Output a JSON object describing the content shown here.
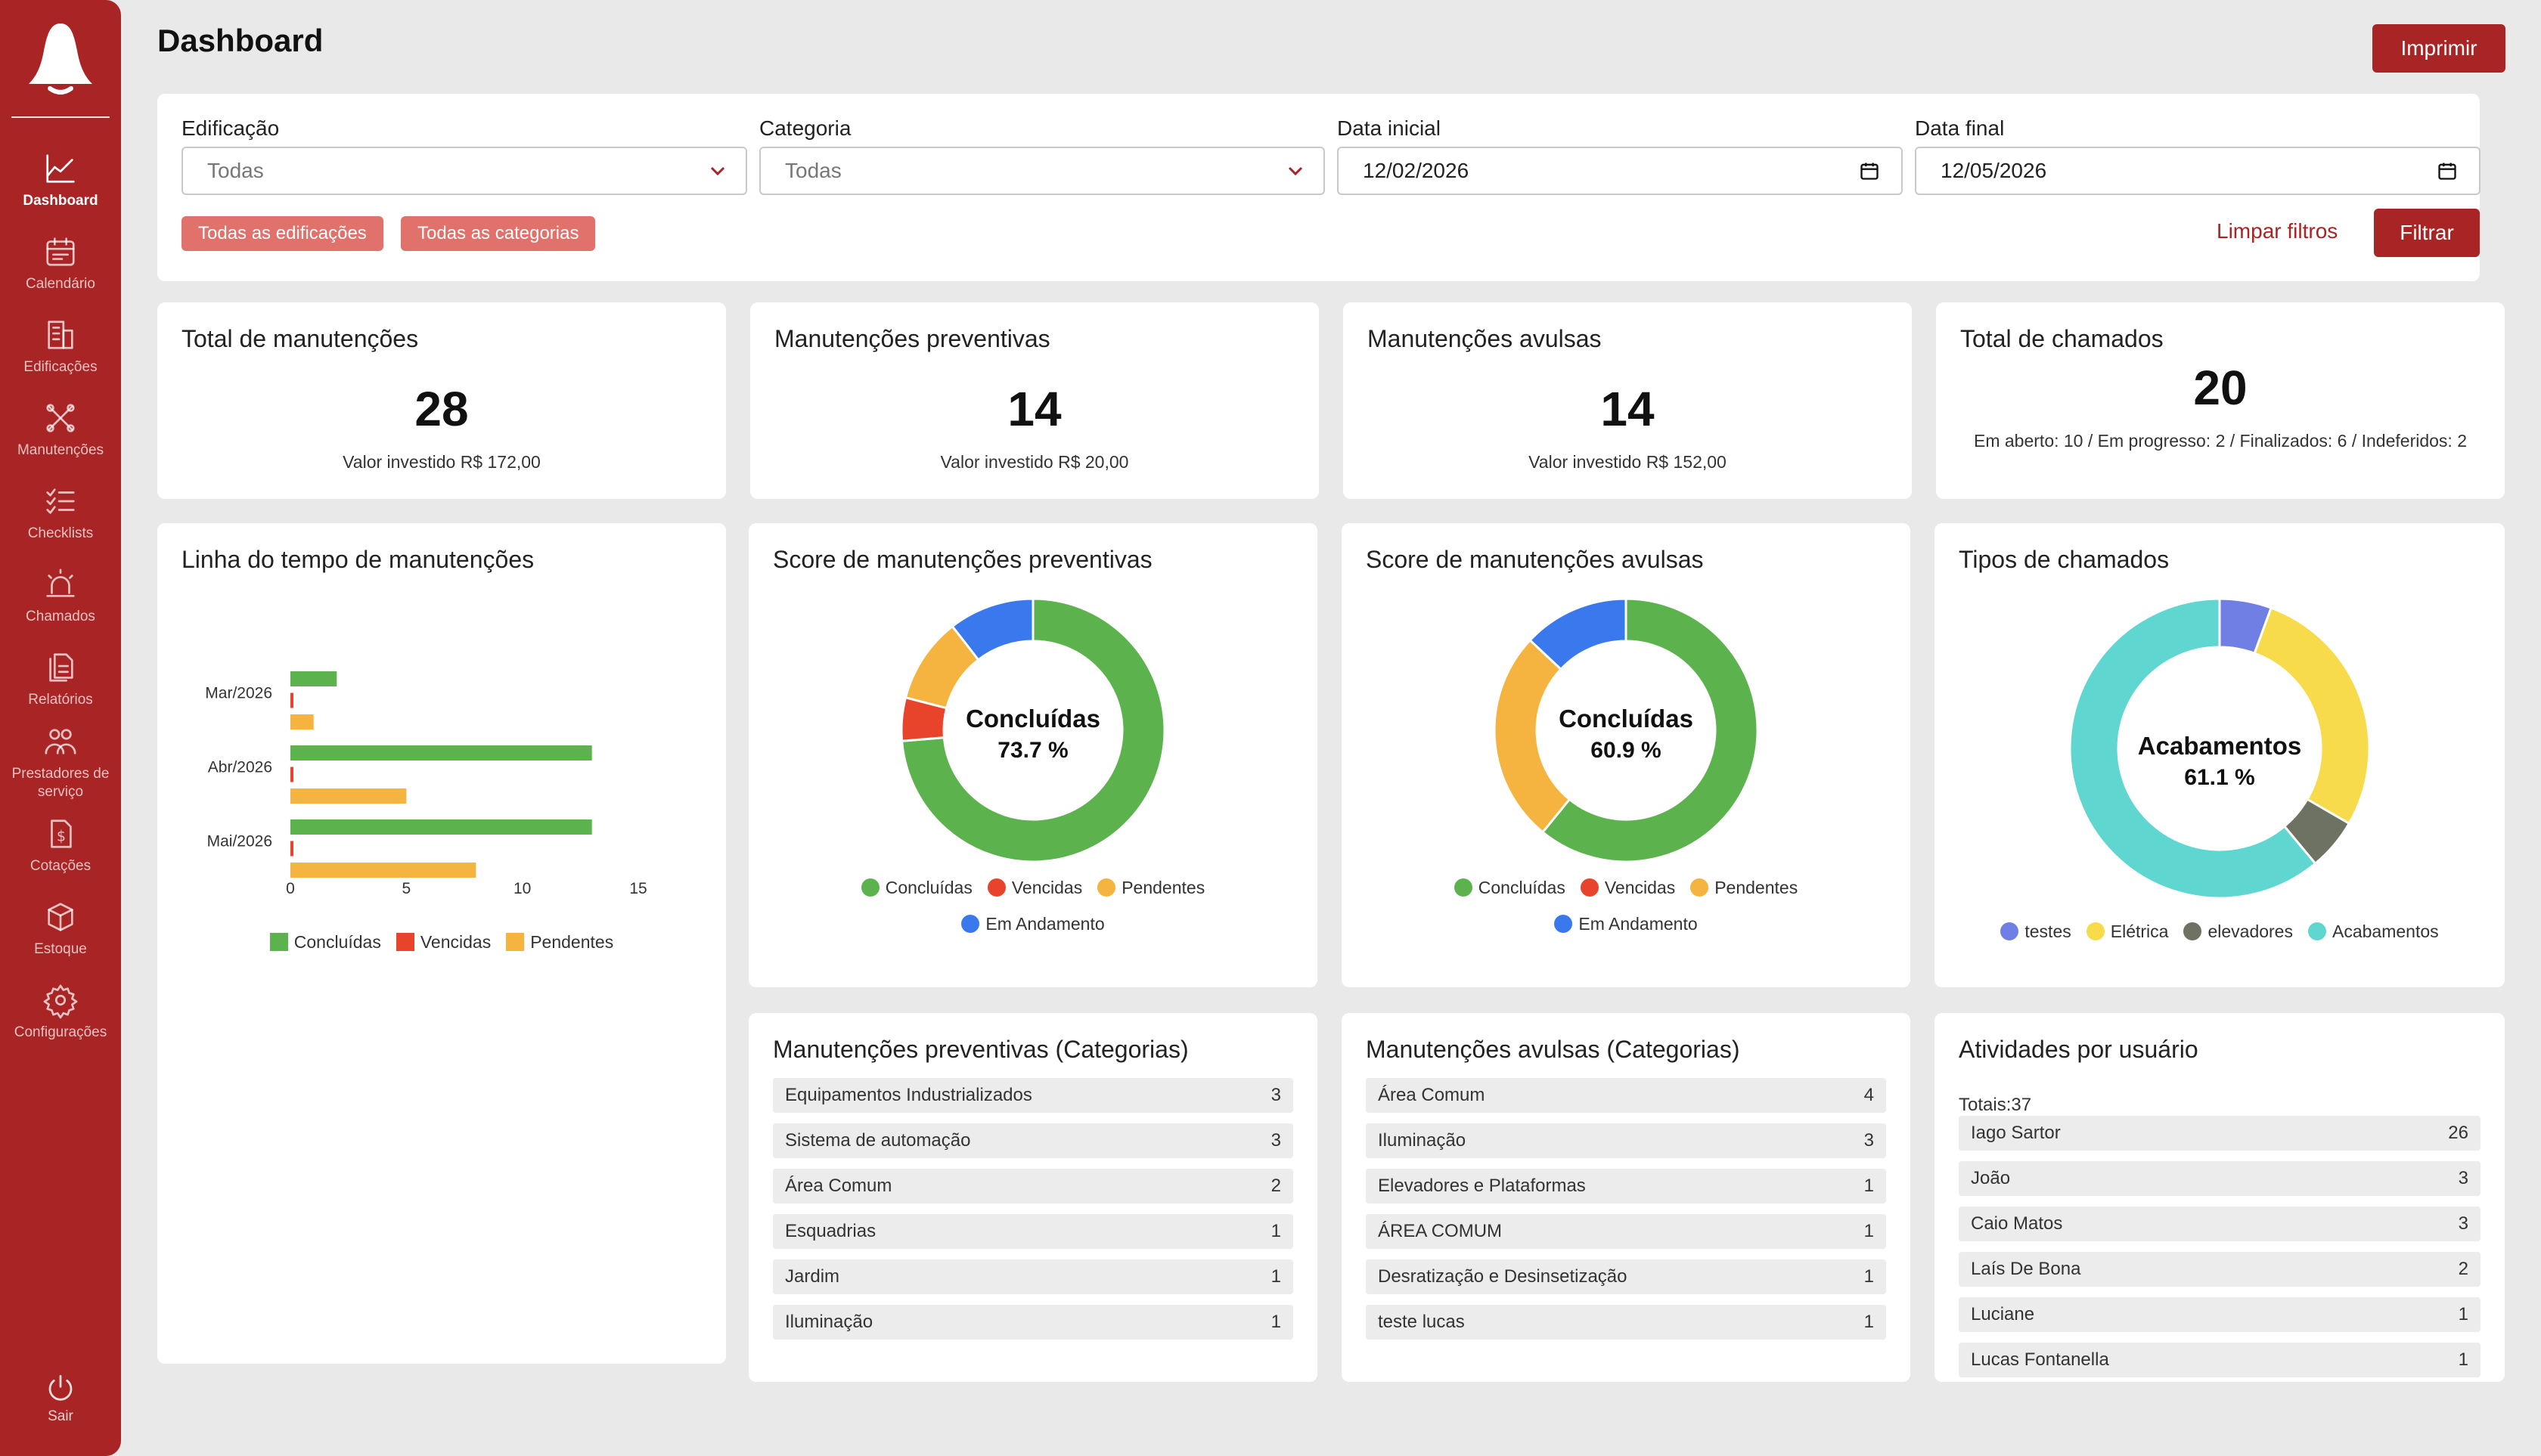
{
  "sidebar": {
    "items": [
      {
        "label": "Dashboard",
        "icon": "chart-line-icon",
        "active": true
      },
      {
        "label": "Calendário",
        "icon": "calendar-icon"
      },
      {
        "label": "Edificações",
        "icon": "building-icon"
      },
      {
        "label": "Manutenções",
        "icon": "tools-icon"
      },
      {
        "label": "Checklists",
        "icon": "checklist-icon"
      },
      {
        "label": "Chamados",
        "icon": "siren-icon"
      },
      {
        "label": "Relatórios",
        "icon": "document-icon"
      },
      {
        "label": "Prestadores de serviço",
        "icon": "people-icon"
      },
      {
        "label": "Cotações",
        "icon": "invoice-icon"
      },
      {
        "label": "Estoque",
        "icon": "box-icon"
      },
      {
        "label": "Configurações",
        "icon": "gear-icon"
      }
    ],
    "logout": "Sair"
  },
  "header": {
    "title": "Dashboard",
    "print_label": "Imprimir"
  },
  "filters": {
    "building_label": "Edificação",
    "building_value": "Todas",
    "category_label": "Categoria",
    "category_value": "Todas",
    "start_label": "Data inicial",
    "start_value": "12/02/2026",
    "end_label": "Data final",
    "end_value": "12/05/2026",
    "chips": [
      "Todas as edificações",
      "Todas as categorias"
    ],
    "clear_label": "Limpar filtros",
    "filter_label": "Filtrar"
  },
  "stats": [
    {
      "title": "Total de manutenções",
      "value": "28",
      "sub": "Valor investido R$ 172,00"
    },
    {
      "title": "Manutenções preventivas",
      "value": "14",
      "sub": "Valor investido R$ 20,00"
    },
    {
      "title": "Manutenções avulsas",
      "value": "14",
      "sub": "Valor investido R$ 152,00"
    },
    {
      "title": "Total de chamados",
      "value": "20",
      "sub": "Em aberto: 10 / Em progresso: 2 / Finalizados: 6 / Indeferidos: 2"
    }
  ],
  "colors": {
    "green": "#5cb34d",
    "red": "#e8442c",
    "orange": "#f4b43f",
    "blue": "#3a78ee",
    "purple": "#6f7fe4",
    "yellow": "#f8db4a",
    "gray": "#6d7262",
    "teal": "#5fd6d0",
    "brand": "#a92424"
  },
  "chart_data": [
    {
      "type": "bar",
      "title": "Linha do tempo de manutenções",
      "orientation": "horizontal",
      "categories": [
        "Mar/2026",
        "Abr/2026",
        "Mai/2026"
      ],
      "series": [
        {
          "name": "Concluídas",
          "values": [
            2,
            13,
            13
          ]
        },
        {
          "name": "Vencidas",
          "values": [
            0.1,
            0.1,
            0.1
          ]
        },
        {
          "name": "Pendentes",
          "values": [
            1,
            5,
            8
          ]
        }
      ],
      "xticks": [
        0,
        5,
        10,
        15
      ],
      "xlim": [
        0,
        15
      ],
      "legend": "bottom"
    },
    {
      "type": "pie",
      "title": "Score de manutenções preventivas",
      "categories": [
        "Concluídas",
        "Vencidas",
        "Pendentes",
        "Em Andamento"
      ],
      "values": [
        73.7,
        5.3,
        10.5,
        10.5
      ],
      "center_label": "Concluídas",
      "center_value": "73.7 %",
      "legend": "bottom"
    },
    {
      "type": "pie",
      "title": "Score de manutenções avulsas",
      "categories": [
        "Concluídas",
        "Vencidas",
        "Pendentes",
        "Em Andamento"
      ],
      "values": [
        60.9,
        0,
        26.1,
        13.0
      ],
      "center_label": "Concluídas",
      "center_value": "60.9 %",
      "legend": "bottom"
    },
    {
      "type": "pie",
      "title": "Tipos de chamados",
      "categories": [
        "testes",
        "Elétrica",
        "elevadores",
        "Acabamentos"
      ],
      "values": [
        5.6,
        27.8,
        5.6,
        61.1
      ],
      "center_label": "Acabamentos",
      "center_value": "61.1 %",
      "legend": "bottom"
    }
  ],
  "preventivas_categorias": {
    "title": "Manutenções preventivas  (Categorias)",
    "rows": [
      {
        "name": "Equipamentos Industrializados",
        "count": "3"
      },
      {
        "name": "Sistema de automação",
        "count": "3"
      },
      {
        "name": "Área Comum",
        "count": "2"
      },
      {
        "name": "Esquadrias",
        "count": "1"
      },
      {
        "name": "Jardim",
        "count": "1"
      },
      {
        "name": "Iluminação",
        "count": "1"
      }
    ]
  },
  "avulsas_categorias": {
    "title": "Manutenções avulsas  (Categorias)",
    "rows": [
      {
        "name": "Área Comum",
        "count": "4"
      },
      {
        "name": "Iluminação",
        "count": "3"
      },
      {
        "name": "Elevadores e Plataformas",
        "count": "1"
      },
      {
        "name": "ÁREA COMUM",
        "count": "1"
      },
      {
        "name": "Desratização e Desinsetização",
        "count": "1"
      },
      {
        "name": "teste lucas",
        "count": "1"
      }
    ]
  },
  "atividades": {
    "title": "Atividades por usuário",
    "totals": "Totais:37",
    "rows": [
      {
        "name": "Iago Sartor",
        "count": "26"
      },
      {
        "name": "João",
        "count": "3"
      },
      {
        "name": "Caio Matos",
        "count": "3"
      },
      {
        "name": "Laís De Bona",
        "count": "2"
      },
      {
        "name": "Luciane",
        "count": "1"
      },
      {
        "name": "Lucas Fontanella",
        "count": "1"
      }
    ]
  }
}
